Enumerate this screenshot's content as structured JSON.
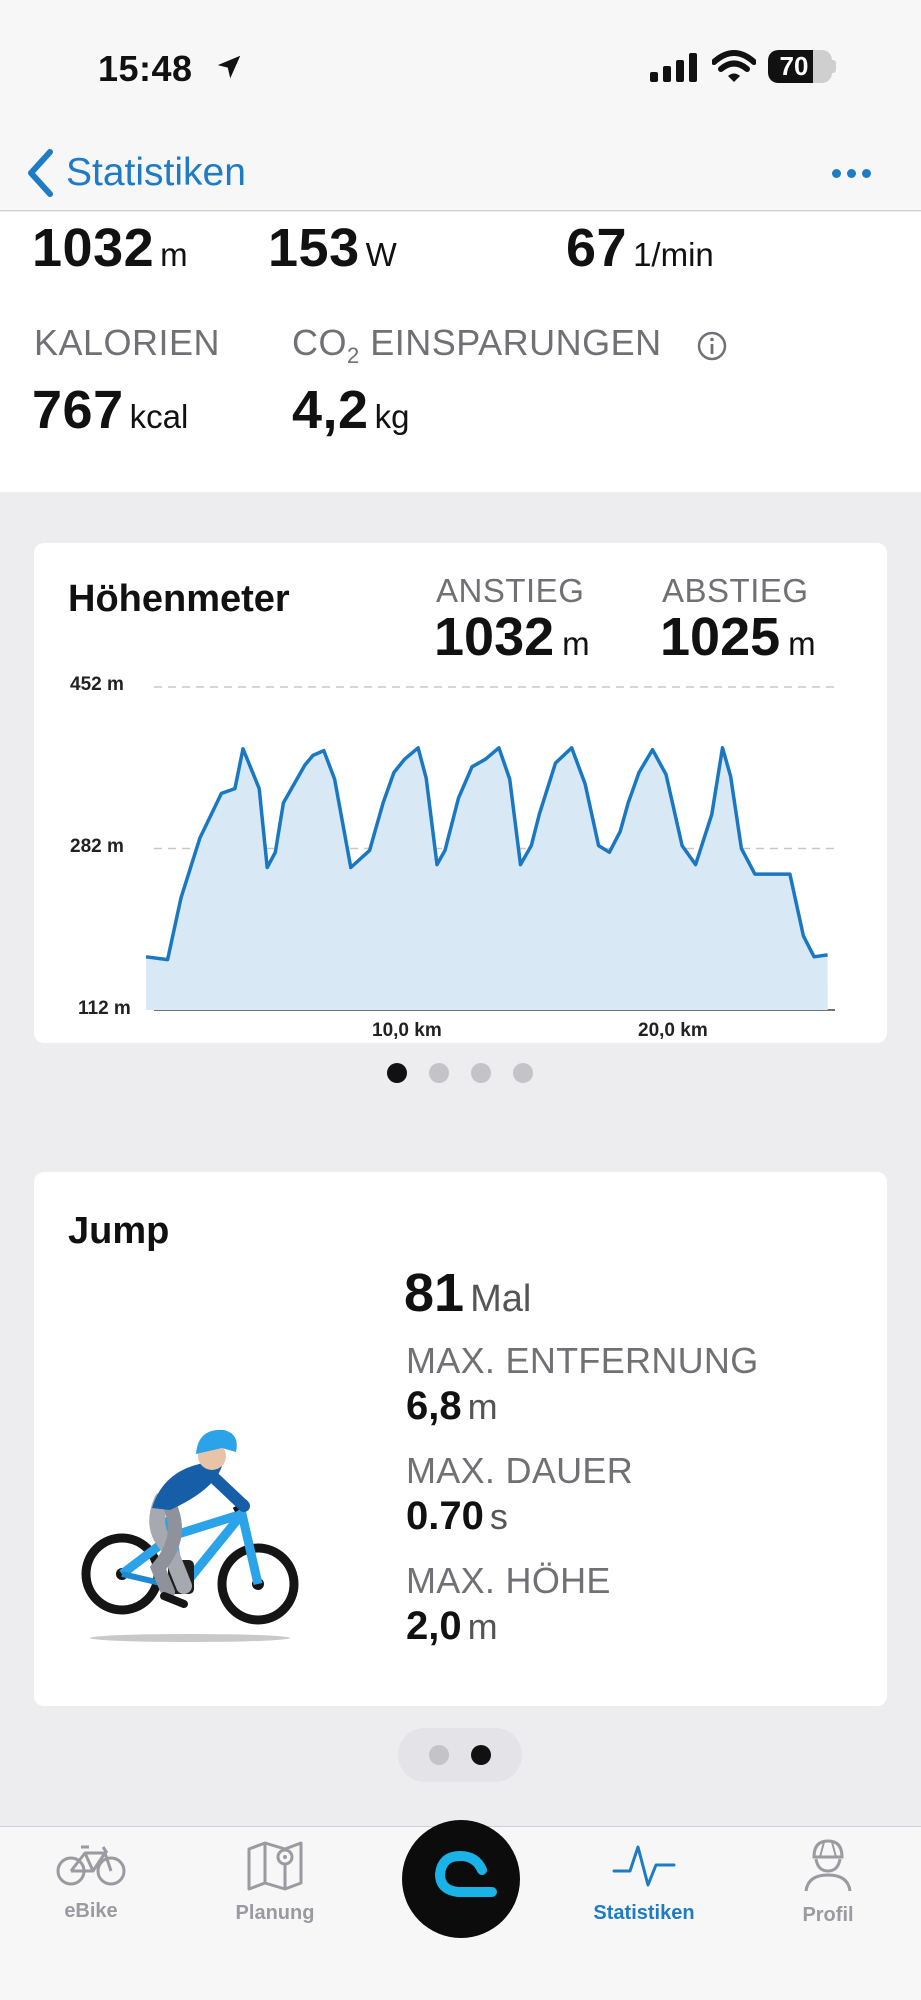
{
  "status_bar": {
    "time": "15:48",
    "battery": "70",
    "battery_level": 0.7
  },
  "nav": {
    "back_label": "Statistiken"
  },
  "top_stats": {
    "ascent": {
      "value": "1032",
      "unit": "m"
    },
    "power": {
      "value": "153",
      "unit": "W"
    },
    "cadence": {
      "value": "67",
      "unit": "1/min"
    },
    "calories": {
      "label": "KALORIEN",
      "value": "767",
      "unit": "kcal"
    },
    "co2": {
      "label_prefix": "CO",
      "label_sub": "2",
      "label_suffix": " EINSPARUNGEN",
      "value": "4,2",
      "unit": "kg"
    }
  },
  "elevation_card": {
    "title": "Höhenmeter",
    "ascent_label": "ANSTIEG",
    "ascent_value": "1032",
    "ascent_unit": "m",
    "descent_label": "ABSTIEG",
    "descent_value": "1025",
    "descent_unit": "m",
    "y_ticks": [
      "452 m",
      "282 m",
      "112 m"
    ],
    "x_ticks": [
      "10,0 km",
      "20,0 km"
    ]
  },
  "chart_data": {
    "type": "area",
    "ylim": [
      112,
      452
    ],
    "xlim": [
      0,
      25.5
    ],
    "y_ticks": [
      112,
      282,
      452
    ],
    "x_ticks": [
      10,
      20
    ],
    "grid": true,
    "color": "#1a78c2",
    "fill": "#d8e8f5",
    "x": [
      0,
      0.8,
      1.3,
      2.0,
      2.8,
      3.3,
      3.6,
      4.2,
      4.5,
      4.8,
      5.1,
      5.5,
      5.9,
      6.2,
      6.6,
      7.0,
      7.6,
      8.3,
      8.8,
      9.2,
      9.6,
      10.1,
      10.4,
      10.8,
      11.1,
      11.6,
      12.1,
      12.6,
      13.1,
      13.5,
      13.9,
      14.3,
      14.6,
      15.2,
      15.8,
      16.3,
      16.8,
      17.2,
      17.6,
      17.9,
      18.3,
      18.8,
      19.3,
      19.9,
      20.4,
      21.0,
      21.4,
      21.7,
      22.1,
      22.6,
      23.2,
      23.9,
      24.4,
      24.8,
      25.3
    ],
    "y": [
      168,
      165,
      230,
      293,
      340,
      345,
      387,
      345,
      262,
      278,
      330,
      350,
      370,
      380,
      385,
      355,
      262,
      280,
      330,
      362,
      376,
      388,
      356,
      265,
      280,
      335,
      368,
      376,
      388,
      355,
      265,
      285,
      318,
      372,
      388,
      350,
      285,
      278,
      300,
      330,
      362,
      386,
      360,
      285,
      265,
      318,
      388,
      358,
      282,
      255,
      255,
      255,
      190,
      168,
      170
    ]
  },
  "jump_card": {
    "title": "Jump",
    "count_value": "81",
    "count_unit": "Mal",
    "max_distance_label": "MAX. ENTFERNUNG",
    "max_distance_value": "6,8",
    "max_distance_unit": "m",
    "max_duration_label": "MAX. DAUER",
    "max_duration_value": "0.70",
    "max_duration_unit": "s",
    "max_height_label": "MAX. HÖHE",
    "max_height_value": "2,0",
    "max_height_unit": "m"
  },
  "tabs": [
    {
      "label": "eBike",
      "icon": "bicycle-icon"
    },
    {
      "label": "Planung",
      "icon": "map-icon"
    },
    {
      "label": "Statistiken",
      "icon": "activity-icon"
    },
    {
      "label": "Profil",
      "icon": "profile-icon"
    }
  ],
  "colors": {
    "accent": "#1f7bc4",
    "muted": "#707075",
    "background": "#ededf0"
  }
}
